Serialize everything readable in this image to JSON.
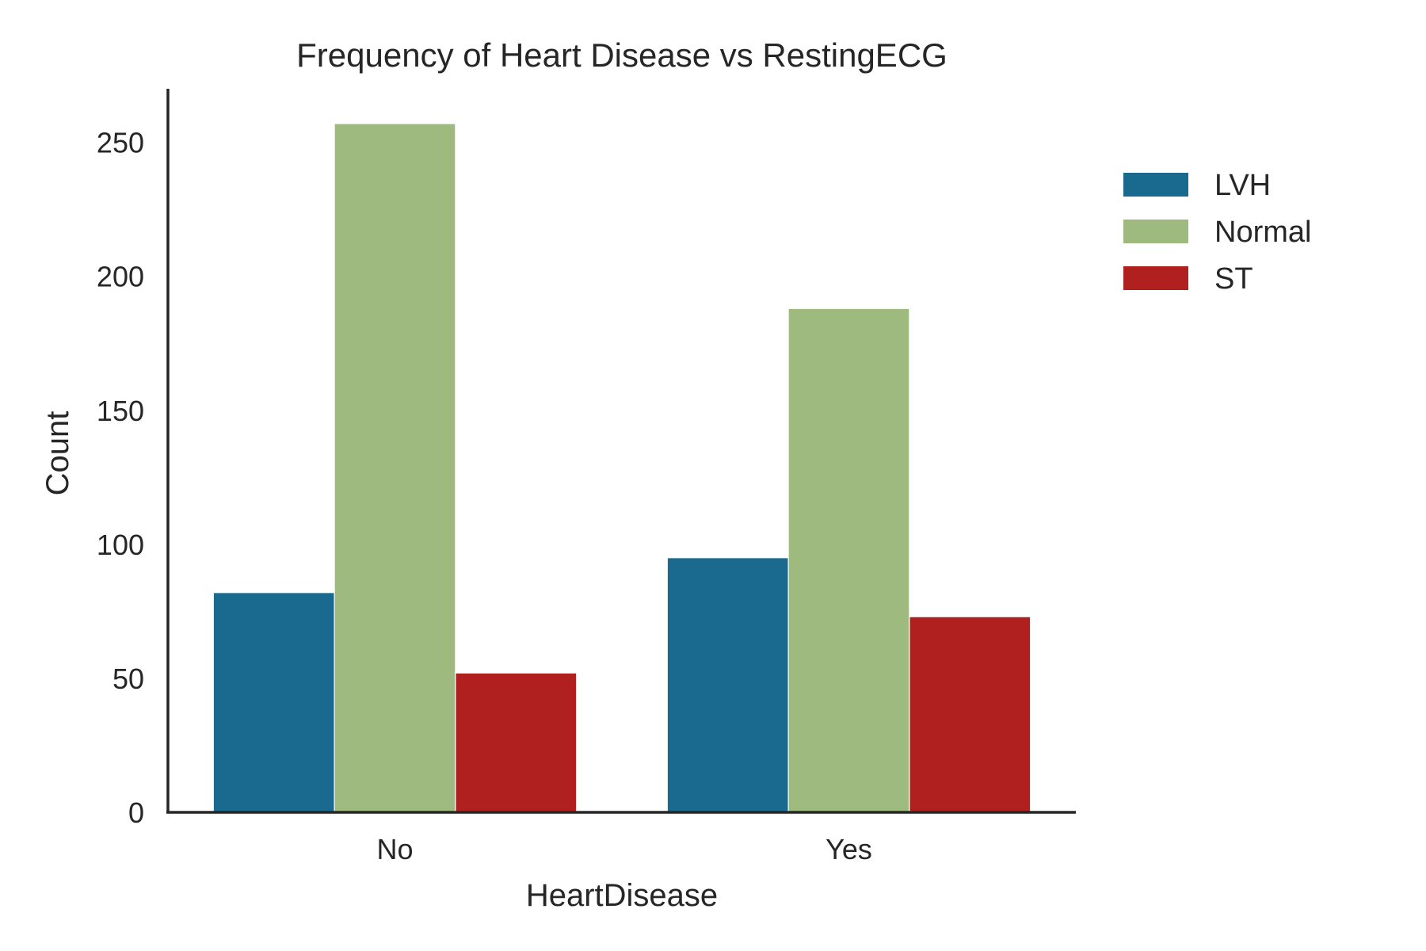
{
  "chart_data": {
    "type": "bar",
    "title": "Frequency of Heart Disease vs RestingECG",
    "xlabel": "HeartDisease",
    "ylabel": "Count",
    "categories": [
      "No",
      "Yes"
    ],
    "series": [
      {
        "name": "LVH",
        "color": "#1a6a8f",
        "values": [
          82,
          95
        ]
      },
      {
        "name": "Normal",
        "color": "#9fba7e",
        "values": [
          257,
          188
        ]
      },
      {
        "name": "ST",
        "color": "#b0201e",
        "values": [
          52,
          73
        ]
      }
    ],
    "ylim": [
      0,
      270
    ],
    "yticks": [
      0,
      50,
      100,
      150,
      200,
      250
    ],
    "grid": false,
    "legend": "top-right, outside plot area"
  }
}
